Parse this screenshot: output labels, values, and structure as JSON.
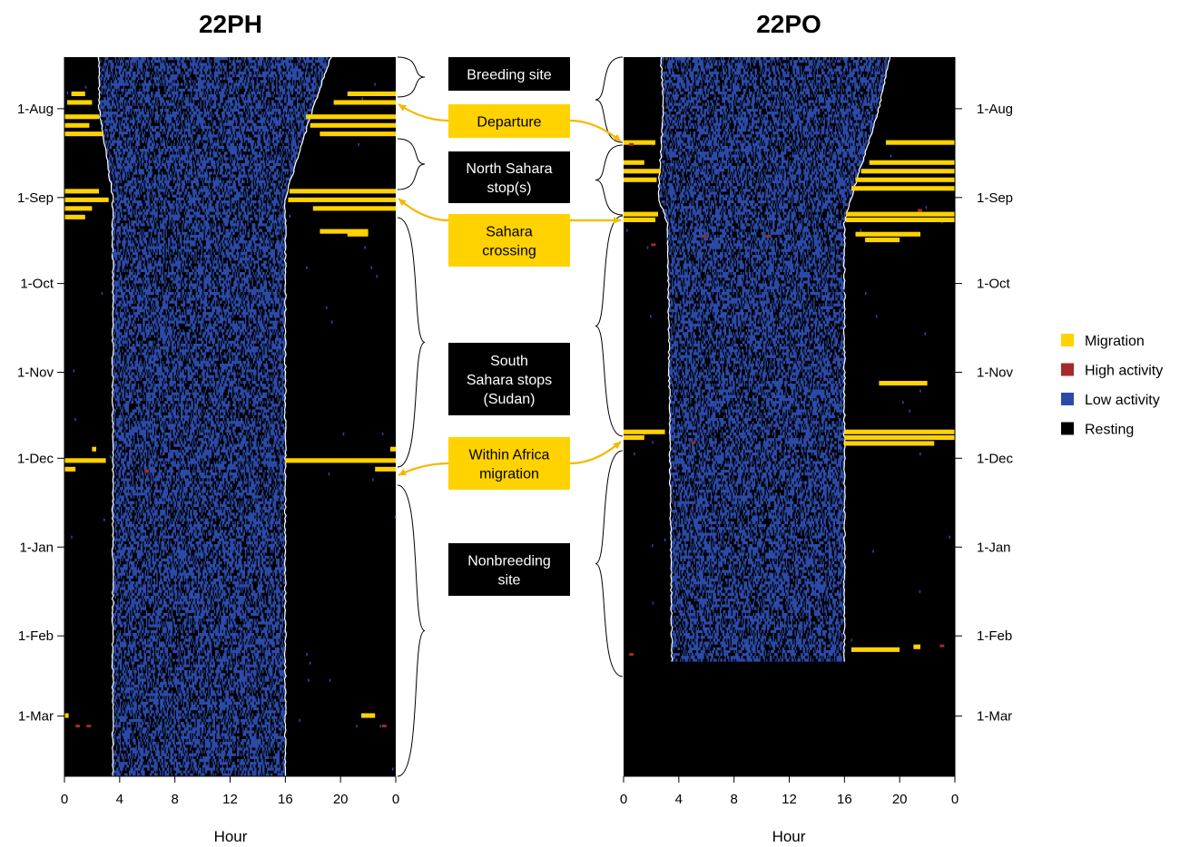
{
  "chart_data": [
    {
      "type": "heatmap",
      "title": "22PH",
      "xlabel": "Hour",
      "x_ticks": [
        "0",
        "4",
        "8",
        "12",
        "16",
        "20",
        "0"
      ],
      "xlim": [
        0,
        24
      ],
      "y_ticks": [
        "1-Aug",
        "1-Sep",
        "1-Oct",
        "1-Nov",
        "1-Dec",
        "1-Jan",
        "1-Feb",
        "1-Mar"
      ],
      "date_range": [
        "14-Jul",
        "22-Mar"
      ],
      "y_tick_side": "left",
      "night_day_boundary": {
        "sunrise_hour": [
          [
            "14-Jul",
            2.5
          ],
          [
            "1-Aug",
            2.5
          ],
          [
            "1-Sep",
            3.5
          ],
          [
            "1-Mar",
            3.5
          ]
        ],
        "sunset_hour": [
          [
            "14-Jul",
            19.3
          ],
          [
            "1-Aug",
            18.0
          ],
          [
            "1-Sep",
            16.0
          ],
          [
            "1-Mar",
            16.0
          ]
        ]
      },
      "migration_bouts": [
        {
          "date": "26-Jul",
          "start_hour": 0.5,
          "end_hour": 1.5
        },
        {
          "date": "26-Jul",
          "start_hour": 20.5,
          "end_hour": 24
        },
        {
          "date": "29-Jul",
          "start_hour": 0.2,
          "end_hour": 2.0
        },
        {
          "date": "29-Jul",
          "start_hour": 19.5,
          "end_hour": 24
        },
        {
          "date": "3-Aug",
          "start_hour": 0,
          "end_hour": 2.5
        },
        {
          "date": "3-Aug",
          "start_hour": 17.5,
          "end_hour": 24
        },
        {
          "date": "6-Aug",
          "start_hour": 0,
          "end_hour": 1.8
        },
        {
          "date": "6-Aug",
          "start_hour": 17.8,
          "end_hour": 24
        },
        {
          "date": "9-Aug",
          "start_hour": 0,
          "end_hour": 2.8
        },
        {
          "date": "9-Aug",
          "start_hour": 18.5,
          "end_hour": 24
        },
        {
          "date": "29-Aug",
          "start_hour": 0,
          "end_hour": 2.5
        },
        {
          "date": "29-Aug",
          "start_hour": 16.3,
          "end_hour": 24
        },
        {
          "date": "1-Sep",
          "start_hour": 0,
          "end_hour": 3.2
        },
        {
          "date": "1-Sep",
          "start_hour": 16.2,
          "end_hour": 24
        },
        {
          "date": "4-Sep",
          "start_hour": 0,
          "end_hour": 2.0
        },
        {
          "date": "4-Sep",
          "start_hour": 18.0,
          "end_hour": 24
        },
        {
          "date": "7-Sep",
          "start_hour": 0,
          "end_hour": 1.5
        },
        {
          "date": "12-Sep",
          "start_hour": 18.5,
          "end_hour": 22.0
        },
        {
          "date": "13-Sep",
          "start_hour": 20.5,
          "end_hour": 22.0
        },
        {
          "date": "1-Dec",
          "start_hour": 0,
          "end_hour": 3.0
        },
        {
          "date": "1-Dec",
          "start_hour": 16.0,
          "end_hour": 24
        },
        {
          "date": "4-Dec",
          "start_hour": 0,
          "end_hour": 0.8
        },
        {
          "date": "4-Dec",
          "start_hour": 22.5,
          "end_hour": 24
        },
        {
          "date": "27-Nov",
          "start_hour": 2.0,
          "end_hour": 2.3
        },
        {
          "date": "27-Nov",
          "start_hour": 23.6,
          "end_hour": 24
        },
        {
          "date": "28-Feb",
          "start_hour": 21.5,
          "end_hour": 22.5
        },
        {
          "date": "28-Feb",
          "start_hour": 0,
          "end_hour": 0.3
        }
      ],
      "high_activity": [
        {
          "date": "4-Mar",
          "hour": 0.8
        },
        {
          "date": "4-Mar",
          "hour": 1.6
        },
        {
          "date": "5-Dec",
          "hour": 5.8
        },
        {
          "date": "4-Mar",
          "hour": 23.0
        }
      ],
      "segments": [
        "Breeding site",
        "Departure",
        "North Sahara stop(s)",
        "Sahara crossing",
        "South Sahara stops (Sudan)",
        "Within Africa migration",
        "Nonbreeding site"
      ]
    },
    {
      "type": "heatmap",
      "title": "22PO",
      "xlabel": "Hour",
      "x_ticks": [
        "0",
        "4",
        "8",
        "12",
        "16",
        "20",
        "0"
      ],
      "xlim": [
        0,
        24
      ],
      "y_ticks": [
        "1-Aug",
        "1-Sep",
        "1-Oct",
        "1-Nov",
        "1-Dec",
        "1-Jan",
        "1-Feb",
        "1-Mar"
      ],
      "date_range": [
        "14-Jul",
        "22-Mar"
      ],
      "data_end_date": "10-Feb",
      "y_tick_side": "right",
      "night_day_boundary": {
        "sunrise_hour": [
          [
            "14-Jul",
            2.7
          ],
          [
            "1-Aug",
            2.9
          ],
          [
            "1-Sep",
            2.5
          ],
          [
            "10-Sep",
            3.2
          ],
          [
            "10-Feb",
            3.5
          ]
        ],
        "sunset_hour": [
          [
            "14-Jul",
            19.3
          ],
          [
            "1-Aug",
            18.5
          ],
          [
            "1-Sep",
            16.5
          ],
          [
            "10-Sep",
            16.0
          ],
          [
            "10-Feb",
            16.0
          ]
        ]
      },
      "migration_bouts": [
        {
          "date": "12-Aug",
          "start_hour": 0,
          "end_hour": 2.3
        },
        {
          "date": "12-Aug",
          "start_hour": 19.0,
          "end_hour": 24
        },
        {
          "date": "19-Aug",
          "start_hour": 0,
          "end_hour": 1.5
        },
        {
          "date": "19-Aug",
          "start_hour": 17.8,
          "end_hour": 24
        },
        {
          "date": "22-Aug",
          "start_hour": 0,
          "end_hour": 2.7
        },
        {
          "date": "22-Aug",
          "start_hour": 17.2,
          "end_hour": 24
        },
        {
          "date": "25-Aug",
          "start_hour": 0,
          "end_hour": 2.4
        },
        {
          "date": "25-Aug",
          "start_hour": 16.8,
          "end_hour": 24
        },
        {
          "date": "28-Aug",
          "start_hour": 16.5,
          "end_hour": 24
        },
        {
          "date": "6-Sep",
          "start_hour": 0,
          "end_hour": 2.5
        },
        {
          "date": "6-Sep",
          "start_hour": 16.1,
          "end_hour": 24
        },
        {
          "date": "8-Sep",
          "start_hour": 0,
          "end_hour": 2.3
        },
        {
          "date": "8-Sep",
          "start_hour": 16.1,
          "end_hour": 24
        },
        {
          "date": "13-Sep",
          "start_hour": 16.8,
          "end_hour": 21.5
        },
        {
          "date": "15-Sep",
          "start_hour": 17.5,
          "end_hour": 20.0
        },
        {
          "date": "4-Nov",
          "start_hour": 18.5,
          "end_hour": 22.0
        },
        {
          "date": "21-Nov",
          "start_hour": 0,
          "end_hour": 3.0
        },
        {
          "date": "21-Nov",
          "start_hour": 16.0,
          "end_hour": 24
        },
        {
          "date": "23-Nov",
          "start_hour": 0,
          "end_hour": 1.5
        },
        {
          "date": "23-Nov",
          "start_hour": 16.0,
          "end_hour": 24
        },
        {
          "date": "25-Nov",
          "start_hour": 16.0,
          "end_hour": 22.5
        },
        {
          "date": "5-Feb",
          "start_hour": 16.5,
          "end_hour": 20.0
        },
        {
          "date": "4-Feb",
          "start_hour": 21.0,
          "end_hour": 21.5
        }
      ],
      "high_activity": [
        {
          "date": "13-Aug",
          "hour": 0.4
        },
        {
          "date": "17-Sep",
          "hour": 2.0
        },
        {
          "date": "14-Sep",
          "hour": 5.7
        },
        {
          "date": "14-Sep",
          "hour": 10.3
        },
        {
          "date": "5-Sep",
          "hour": 21.3
        },
        {
          "date": "25-Nov",
          "hour": 4.9
        },
        {
          "date": "7-Feb",
          "hour": 0.4
        },
        {
          "date": "4-Feb",
          "hour": 22.9
        }
      ]
    }
  ],
  "annotations": {
    "black_boxes": [
      {
        "lines": [
          "Breeding site"
        ]
      },
      {
        "lines": [
          "North Sahara",
          "stop(s)"
        ]
      },
      {
        "lines": [
          "South",
          "Sahara stops",
          "(Sudan)"
        ]
      },
      {
        "lines": [
          "Nonbreeding",
          "site"
        ]
      }
    ],
    "yellow_boxes": [
      {
        "lines": [
          "Departure"
        ]
      },
      {
        "lines": [
          "Sahara",
          "crossing"
        ]
      },
      {
        "lines": [
          "Within Africa",
          "migration"
        ]
      }
    ]
  },
  "legend": {
    "placement": "right",
    "items": [
      {
        "label": "Migration",
        "color": "#ffd200"
      },
      {
        "label": "High activity",
        "color": "#a52a2a"
      },
      {
        "label": "Low activity",
        "color": "#2b4aa8"
      },
      {
        "label": "Resting",
        "color": "#000000"
      }
    ]
  },
  "colors": {
    "migration": "#ffd200",
    "high_activity": "#a52a2a",
    "low_activity": "#2b4aa8",
    "resting": "#000000",
    "boundary": "#ffffff",
    "callout_line": "#000000",
    "callout_arrow": "#f5b800"
  }
}
